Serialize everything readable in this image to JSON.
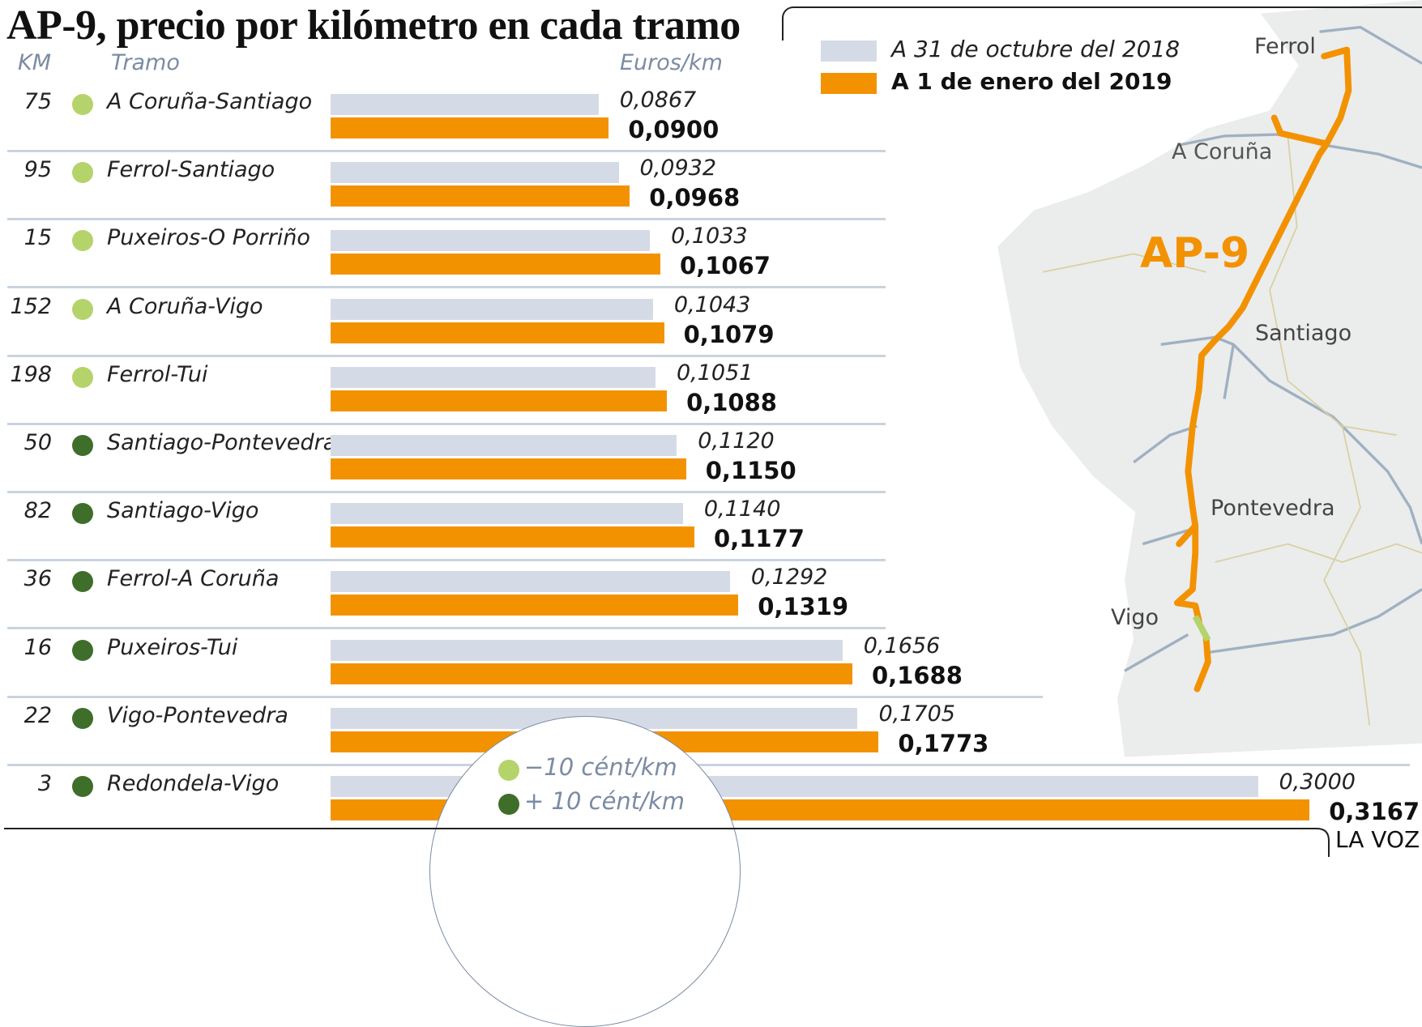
{
  "title": "AP-9, precio por kilómetro en cada tramo",
  "headers": {
    "km": "KM",
    "tramo": "Tramo",
    "euros": "Euros/km"
  },
  "legend": {
    "series_2018": "A 31 de octubre del 2018",
    "series_2019": "A 1 de enero del 2019",
    "minus": "−10 cént/km",
    "plus": "+ 10 cént/km"
  },
  "map": {
    "road_label": "AP-9",
    "cities": [
      "Ferrol",
      "A Coruña",
      "Santiago",
      "Pontevedra",
      "Vigo"
    ]
  },
  "source": "LA VOZ",
  "colors": {
    "bar_2018": "#d5dbe6",
    "bar_2019": "#f39200",
    "minus": "#b5d36b",
    "plus": "#3f6e2a",
    "header": "#7b8ba3"
  },
  "chart_data": {
    "type": "bar",
    "orientation": "horizontal",
    "title": "AP-9, precio por kilómetro en cada tramo",
    "xlabel": "Euros/km",
    "legend_position": "top-right",
    "series": [
      {
        "name": "A 31 de octubre del 2018",
        "values": [
          0.0867,
          0.0932,
          0.1033,
          0.1043,
          0.1051,
          0.112,
          0.114,
          0.1292,
          0.1656,
          0.1705,
          0.3
        ]
      },
      {
        "name": "A 1 de enero del 2019",
        "values": [
          0.09,
          0.0968,
          0.1067,
          0.1079,
          0.1088,
          0.115,
          0.1177,
          0.1319,
          0.1688,
          0.1773,
          0.3167
        ]
      }
    ],
    "rows": [
      {
        "km": "75",
        "tramo": "A Coruña-Santiago",
        "change": "minus",
        "v2018": 0.0867,
        "v2019": 0.09,
        "l2018": "0,0867",
        "l2019": "0,0900"
      },
      {
        "km": "95",
        "tramo": "Ferrol-Santiago",
        "change": "minus",
        "v2018": 0.0932,
        "v2019": 0.0968,
        "l2018": "0,0932",
        "l2019": "0,0968"
      },
      {
        "km": "15",
        "tramo": "Puxeiros-O Porriño",
        "change": "minus",
        "v2018": 0.1033,
        "v2019": 0.1067,
        "l2018": "0,1033",
        "l2019": "0,1067"
      },
      {
        "km": "152",
        "tramo": "A Coruña-Vigo",
        "change": "minus",
        "v2018": 0.1043,
        "v2019": 0.1079,
        "l2018": "0,1043",
        "l2019": "0,1079"
      },
      {
        "km": "198",
        "tramo": "Ferrol-Tui",
        "change": "minus",
        "v2018": 0.1051,
        "v2019": 0.1088,
        "l2018": "0,1051",
        "l2019": "0,1088"
      },
      {
        "km": "50",
        "tramo": "Santiago-Pontevedra",
        "change": "plus",
        "v2018": 0.112,
        "v2019": 0.115,
        "l2018": "0,1120",
        "l2019": "0,1150"
      },
      {
        "km": "82",
        "tramo": "Santiago-Vigo",
        "change": "plus",
        "v2018": 0.114,
        "v2019": 0.1177,
        "l2018": "0,1140",
        "l2019": "0,1177"
      },
      {
        "km": "36",
        "tramo": "Ferrol-A Coruña",
        "change": "plus",
        "v2018": 0.1292,
        "v2019": 0.1319,
        "l2018": "0,1292",
        "l2019": "0,1319"
      },
      {
        "km": "16",
        "tramo": "Puxeiros-Tui",
        "change": "plus",
        "v2018": 0.1656,
        "v2019": 0.1688,
        "l2018": "0,1656",
        "l2019": "0,1688"
      },
      {
        "km": "22",
        "tramo": "Vigo-Pontevedra",
        "change": "plus",
        "v2018": 0.1705,
        "v2019": 0.1773,
        "l2018": "0,1705",
        "l2019": "0,1773"
      },
      {
        "km": "3",
        "tramo": "Redondela-Vigo",
        "change": "plus",
        "v2018": 0.3,
        "v2019": 0.3167,
        "l2018": "0,3000",
        "l2019": "0,3167"
      }
    ]
  }
}
